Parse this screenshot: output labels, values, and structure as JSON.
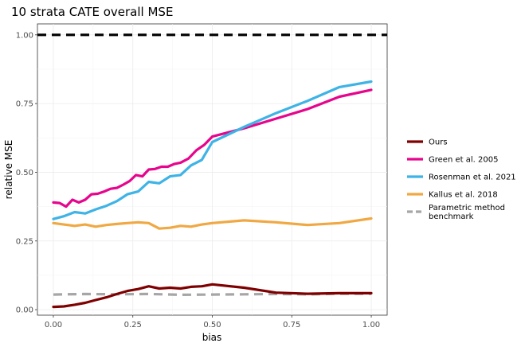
{
  "chart_data": {
    "type": "line",
    "title": "10 strata CATE overall MSE",
    "xlabel": "bias",
    "ylabel": "relative MSE",
    "xlim": [
      -0.05,
      1.05
    ],
    "ylim": [
      -0.02,
      1.04
    ],
    "x_ticks": [
      0.0,
      0.25,
      0.5,
      0.75,
      1.0
    ],
    "x_tick_labels": [
      "0.00",
      "0.25",
      "0.50",
      "0.75",
      "1.00"
    ],
    "y_ticks": [
      0.0,
      0.25,
      0.5,
      0.75,
      1.0
    ],
    "y_tick_labels": [
      "0.00",
      "0.25",
      "0.50",
      "0.75",
      "1.00"
    ],
    "grid": true,
    "legend_position": "right",
    "reference_line": {
      "y": 1.0,
      "color": "#000000",
      "style": "dashed"
    },
    "series": [
      {
        "name": "Ours",
        "color": "#7f0000",
        "style": "solid",
        "x": [
          0,
          0.033,
          0.067,
          0.1,
          0.133,
          0.167,
          0.2,
          0.233,
          0.267,
          0.3,
          0.333,
          0.367,
          0.4,
          0.433,
          0.467,
          0.5,
          0.6,
          0.7,
          0.8,
          0.9,
          1.0
        ],
        "y": [
          0.01,
          0.012,
          0.018,
          0.025,
          0.035,
          0.045,
          0.057,
          0.068,
          0.075,
          0.085,
          0.077,
          0.08,
          0.077,
          0.083,
          0.085,
          0.092,
          0.08,
          0.062,
          0.058,
          0.06,
          0.06
        ]
      },
      {
        "name": "Green et al. 2005",
        "color": "#e6058c",
        "style": "solid",
        "x": [
          0,
          0.02,
          0.04,
          0.06,
          0.08,
          0.1,
          0.12,
          0.14,
          0.16,
          0.18,
          0.2,
          0.22,
          0.24,
          0.26,
          0.28,
          0.3,
          0.32,
          0.34,
          0.36,
          0.38,
          0.4,
          0.425,
          0.45,
          0.475,
          0.5,
          0.6,
          0.7,
          0.8,
          0.9,
          1.0
        ],
        "y": [
          0.39,
          0.388,
          0.375,
          0.4,
          0.39,
          0.4,
          0.42,
          0.422,
          0.43,
          0.44,
          0.443,
          0.455,
          0.468,
          0.49,
          0.485,
          0.51,
          0.512,
          0.52,
          0.52,
          0.53,
          0.535,
          0.55,
          0.58,
          0.6,
          0.63,
          0.66,
          0.695,
          0.73,
          0.775,
          0.8
        ]
      },
      {
        "name": "Rosenman et al. 2021",
        "color": "#3eb3e6",
        "style": "solid",
        "x": [
          0,
          0.033,
          0.067,
          0.1,
          0.133,
          0.167,
          0.2,
          0.233,
          0.267,
          0.3,
          0.333,
          0.367,
          0.4,
          0.433,
          0.467,
          0.5,
          0.6,
          0.7,
          0.8,
          0.9,
          1.0
        ],
        "y": [
          0.33,
          0.34,
          0.355,
          0.35,
          0.365,
          0.378,
          0.395,
          0.42,
          0.43,
          0.465,
          0.46,
          0.485,
          0.49,
          0.525,
          0.545,
          0.61,
          0.665,
          0.715,
          0.76,
          0.81,
          0.83
        ]
      },
      {
        "name": "Kallus et al. 2018",
        "color": "#f0a843",
        "style": "solid",
        "x": [
          0,
          0.033,
          0.067,
          0.1,
          0.133,
          0.167,
          0.2,
          0.233,
          0.267,
          0.3,
          0.333,
          0.367,
          0.4,
          0.433,
          0.467,
          0.5,
          0.6,
          0.7,
          0.8,
          0.9,
          1.0
        ],
        "y": [
          0.315,
          0.31,
          0.305,
          0.31,
          0.302,
          0.308,
          0.312,
          0.315,
          0.318,
          0.315,
          0.295,
          0.298,
          0.305,
          0.302,
          0.31,
          0.315,
          0.325,
          0.318,
          0.308,
          0.315,
          0.332
        ]
      },
      {
        "name": "Parametric method benchmark",
        "color": "#a6a6a6",
        "style": "dashed",
        "x": [
          0,
          0.1,
          0.2,
          0.3,
          0.4,
          0.5,
          0.6,
          0.7,
          0.8,
          0.9,
          1.0
        ],
        "y": [
          0.055,
          0.057,
          0.056,
          0.057,
          0.054,
          0.055,
          0.056,
          0.057,
          0.056,
          0.058,
          0.058
        ]
      }
    ],
    "legend": [
      {
        "label_lines": [
          "Ours"
        ]
      },
      {
        "label_lines": [
          "Green et al. 2005"
        ]
      },
      {
        "label_lines": [
          "Rosenman et al. 2021"
        ]
      },
      {
        "label_lines": [
          "Kallus et al. 2018"
        ]
      },
      {
        "label_lines": [
          "Parametric method",
          "benchmark"
        ]
      }
    ]
  }
}
